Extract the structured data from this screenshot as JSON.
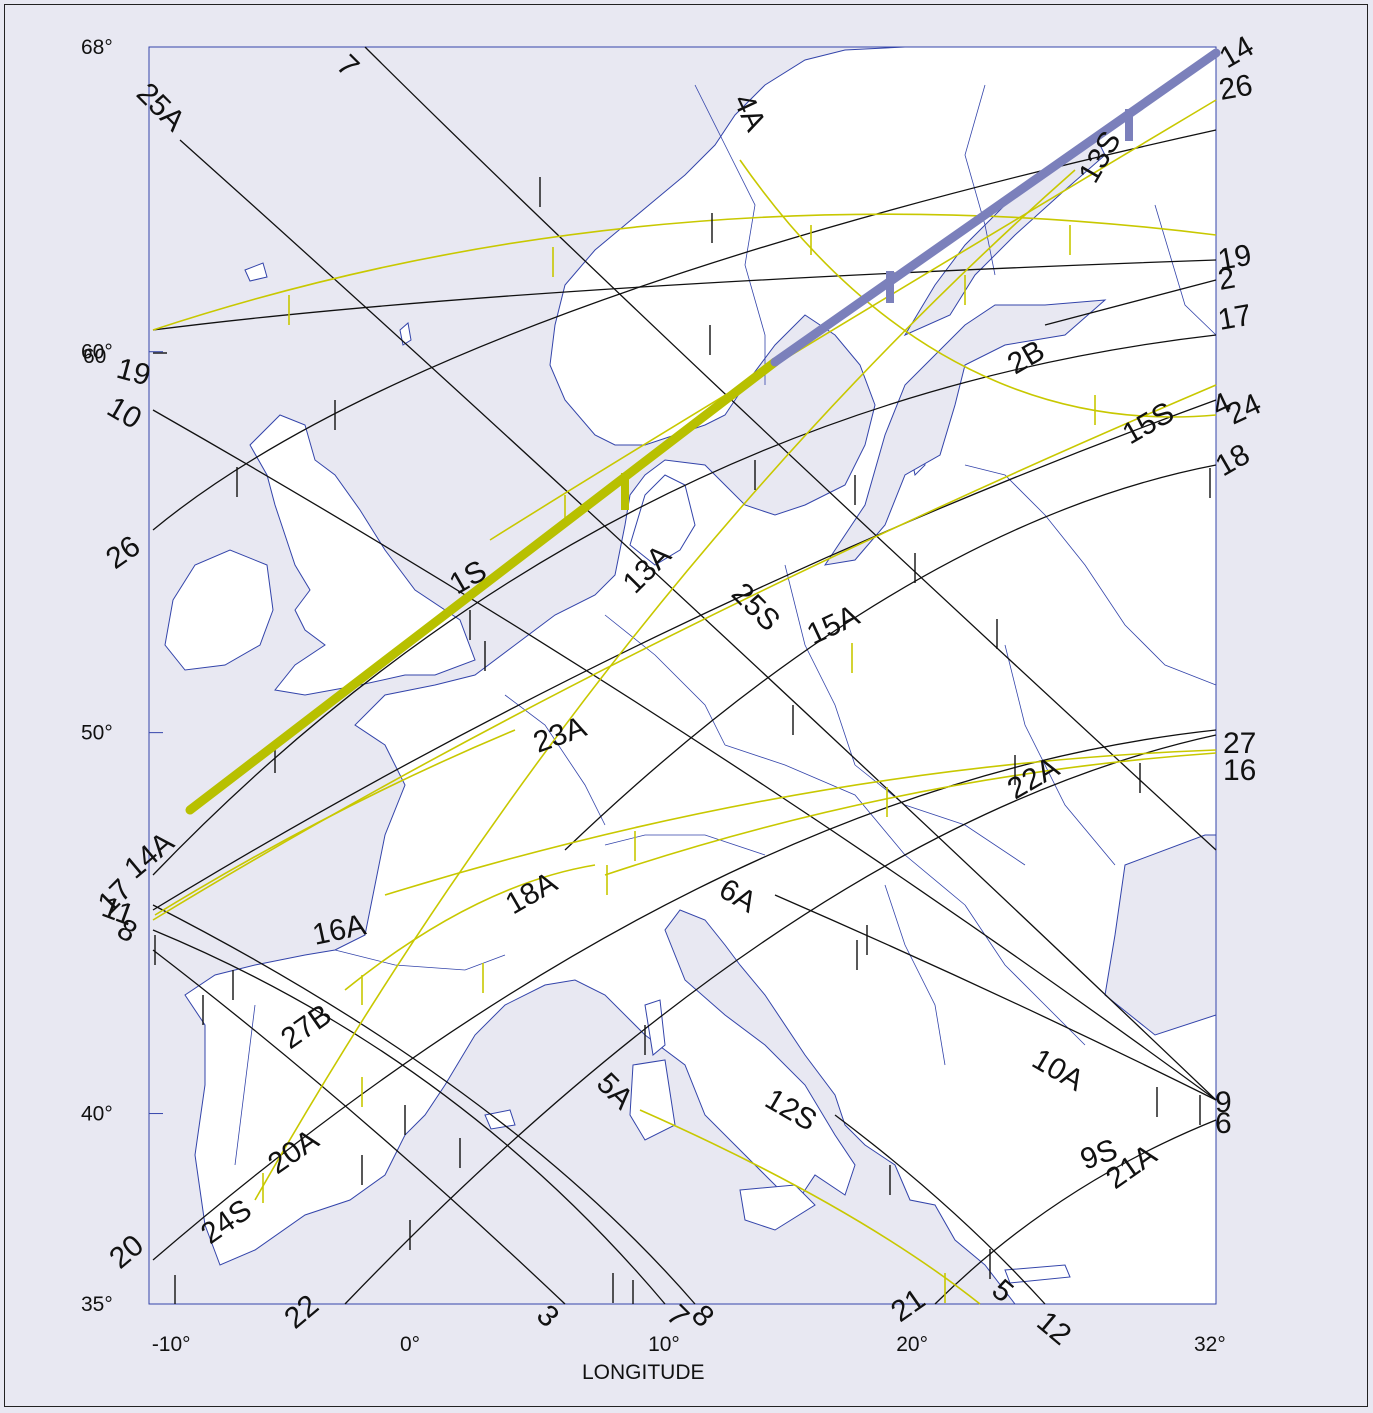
{
  "map": {
    "x_axis_title": "LONGITUDE",
    "lon_ticks": [
      {
        "lon": -10,
        "label": "-10°"
      },
      {
        "lon": 0,
        "label": "0°"
      },
      {
        "lon": 10,
        "label": "10°"
      },
      {
        "lon": 20,
        "label": "20°"
      },
      {
        "lon": 32,
        "label": "32°"
      }
    ],
    "lat_ticks": [
      {
        "lat": 68,
        "label": "68°"
      },
      {
        "lat": 60,
        "label": "60°"
      },
      {
        "lat": 50,
        "label": "50°"
      },
      {
        "lat": 40,
        "label": "40°"
      },
      {
        "lat": 35,
        "label": "35°"
      }
    ],
    "extent": {
      "lon": [
        -11,
        32
      ],
      "lat": [
        35,
        68
      ]
    },
    "colors": {
      "background": "#e8e8f2",
      "land": "#ffffff",
      "coast": "#3344aa",
      "track_black": "#111111",
      "track_yellow": "#c8c800",
      "highlight_green": "#b8c000",
      "highlight_blue": "#7b80bb"
    },
    "highlighted_tracks": [
      {
        "id": "1S",
        "color": "green"
      },
      {
        "id": "13S",
        "color": "blue"
      }
    ],
    "track_labels": [
      "7",
      "25A",
      "4A",
      "14",
      "26",
      "13S",
      "19",
      "2",
      "17",
      "2B",
      "60",
      "19",
      "10",
      "15S",
      "4",
      "24",
      "18",
      "26",
      "1S",
      "13A",
      "25S",
      "15A",
      "23A",
      "27",
      "16",
      "22A",
      "17",
      "14A",
      "11",
      "8",
      "16A",
      "18A",
      "6A",
      "27B",
      "10A",
      "5A",
      "12S",
      "9",
      "6",
      "9S",
      "21A",
      "20A",
      "24S",
      "20",
      "22",
      "3",
      "7",
      "8",
      "21",
      "5",
      "12"
    ]
  }
}
